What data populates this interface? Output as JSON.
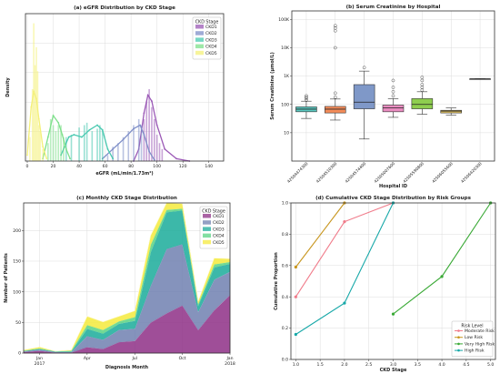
{
  "chart_data": [
    {
      "panel": "a",
      "type": "area",
      "title": "(a) eGFR Distribution by CKD Stage",
      "xlabel": "eGFR (mL/min/1.73m²)",
      "ylabel": "Density",
      "xlim": [
        0,
        150
      ],
      "x_ticks": [
        "0",
        "20",
        "40",
        "60",
        "80",
        "100",
        "120",
        "140"
      ],
      "y_ticks": [],
      "legend_title": "CKD Stage",
      "legend_position": "top-right",
      "series": [
        {
          "name": "CKD1",
          "color": "#9b59b6",
          "histogram": [
            [
              90,
              0.35
            ],
            [
              92,
              0.5
            ],
            [
              94,
              0.6
            ],
            [
              96,
              0.45
            ],
            [
              98,
              0.35
            ],
            [
              100,
              0.22
            ],
            [
              102,
              0.15
            ],
            [
              104,
              0.1
            ]
          ],
          "kde": [
            [
              82,
              0.0
            ],
            [
              86,
              0.1
            ],
            [
              90,
              0.4
            ],
            [
              93,
              0.55
            ],
            [
              96,
              0.5
            ],
            [
              100,
              0.3
            ],
            [
              106,
              0.1
            ],
            [
              115,
              0.02
            ],
            [
              125,
              0.0
            ]
          ]
        },
        {
          "name": "CKD2",
          "color": "#7f8fc8",
          "histogram": [
            [
              62,
              0.05
            ],
            [
              66,
              0.12
            ],
            [
              70,
              0.15
            ],
            [
              74,
              0.2
            ],
            [
              78,
              0.25
            ],
            [
              82,
              0.3
            ],
            [
              86,
              0.35
            ],
            [
              88,
              0.3
            ]
          ],
          "kde": [
            [
              58,
              0.02
            ],
            [
              66,
              0.1
            ],
            [
              74,
              0.18
            ],
            [
              82,
              0.27
            ],
            [
              87,
              0.3
            ],
            [
              90,
              0.22
            ],
            [
              94,
              0.08
            ],
            [
              98,
              0.01
            ]
          ]
        },
        {
          "name": "CKD3",
          "color": "#48c9b0",
          "histogram": [
            [
              30,
              0.2
            ],
            [
              34,
              0.22
            ],
            [
              40,
              0.28
            ],
            [
              44,
              0.3
            ],
            [
              46,
              0.32
            ],
            [
              50,
              0.25
            ],
            [
              54,
              0.27
            ],
            [
              56,
              0.3
            ],
            [
              58,
              0.26
            ]
          ],
          "kde": [
            [
              26,
              0.05
            ],
            [
              32,
              0.2
            ],
            [
              36,
              0.22
            ],
            [
              42,
              0.2
            ],
            [
              48,
              0.26
            ],
            [
              54,
              0.3
            ],
            [
              58,
              0.26
            ],
            [
              62,
              0.1
            ],
            [
              66,
              0.02
            ]
          ]
        },
        {
          "name": "CKD4",
          "color": "#7ee08b",
          "histogram": [
            [
              16,
              0.15
            ],
            [
              18,
              0.35
            ],
            [
              20,
              0.3
            ],
            [
              22,
              0.25
            ],
            [
              24,
              0.3
            ],
            [
              26,
              0.3
            ],
            [
              28,
              0.2
            ]
          ],
          "kde": [
            [
              12,
              0.02
            ],
            [
              16,
              0.2
            ],
            [
              20,
              0.38
            ],
            [
              24,
              0.32
            ],
            [
              27,
              0.22
            ],
            [
              30,
              0.1
            ],
            [
              33,
              0.02
            ]
          ]
        },
        {
          "name": "CKD5",
          "color": "#f4f07a",
          "histogram": [
            [
              2,
              0.2
            ],
            [
              4,
              0.6
            ],
            [
              5,
              1.15
            ],
            [
              6,
              0.8
            ],
            [
              7,
              0.95
            ],
            [
              8,
              0.75
            ],
            [
              9,
              0.3
            ],
            [
              10,
              0.25
            ],
            [
              12,
              0.1
            ]
          ],
          "kde": [
            [
              0,
              0.05
            ],
            [
              3,
              0.45
            ],
            [
              5,
              0.58
            ],
            [
              7,
              0.52
            ],
            [
              9,
              0.35
            ],
            [
              12,
              0.12
            ],
            [
              15,
              0.02
            ]
          ]
        }
      ]
    },
    {
      "panel": "b",
      "type": "box",
      "title": "(b) Serum Creatinine by Hospital",
      "xlabel": "Hospital ID",
      "ylabel": "Serum Creatinine (µmol/L)",
      "yscale": "log",
      "ylim": [
        1,
        200000
      ],
      "y_ticks": [
        "10",
        "100",
        "1K",
        "10K",
        "100K"
      ],
      "boxes": [
        {
          "label": "42504474300",
          "color": "#5bc8c0",
          "whisker_low": 32,
          "q1": 55,
          "median": 68,
          "q3": 82,
          "whisker_high": 130,
          "outliers": [
            140,
            160,
            180,
            200
          ]
        },
        {
          "name": "",
          "label": "42504510300",
          "color": "#f48c5a",
          "whisker_low": 28,
          "q1": 50,
          "median": 68,
          "q3": 85,
          "whisker_high": 155,
          "outliers": [
            180,
            250,
            10000,
            40000,
            50000,
            60000
          ]
        },
        {
          "label": "42504574400",
          "color": "#7f98c8",
          "whisker_low": 6,
          "q1": 70,
          "median": 120,
          "q3": 500,
          "whisker_high": 1500,
          "outliers": [
            2000
          ]
        },
        {
          "label": "42505007600",
          "color": "#e98cc0",
          "whisker_low": 35,
          "q1": 55,
          "median": 75,
          "q3": 95,
          "whisker_high": 160,
          "outliers": [
            200,
            280,
            400,
            700
          ]
        },
        {
          "label": "42505590800",
          "color": "#8ece4f",
          "whisker_low": 45,
          "q1": 70,
          "median": 100,
          "q3": 160,
          "whisker_high": 280,
          "outliers": [
            320,
            400,
            500,
            700,
            900
          ]
        },
        {
          "label": "42506055600",
          "color": "#e0c060",
          "whisker_low": 42,
          "q1": 50,
          "median": 58,
          "q3": 62,
          "whisker_high": 75,
          "outliers": []
        },
        {
          "label": "42506420300",
          "color": "#b8b8b8",
          "whisker_low": 800,
          "q1": 800,
          "median": 800,
          "q3": 800,
          "whisker_high": 800,
          "outliers": []
        }
      ]
    },
    {
      "panel": "c",
      "type": "area",
      "stacked": true,
      "title": "(c) Monthly CKD Stage Distribution",
      "xlabel": "Diagnosis Month",
      "ylabel": "Number of Patients",
      "ylim": [
        0,
        245
      ],
      "y_ticks": [
        "0",
        "50",
        "100",
        "150",
        "200"
      ],
      "x_ticks": [
        {
          "label": "Jan",
          "sub": "2017",
          "month": 1
        },
        {
          "label": "Apr",
          "sub": "",
          "month": 4
        },
        {
          "label": "Jul",
          "sub": "",
          "month": 7
        },
        {
          "label": "Oct",
          "sub": "",
          "month": 10
        },
        {
          "label": "Jan",
          "sub": "2018",
          "month": 13
        }
      ],
      "months": [
        0,
        1,
        2,
        3,
        4,
        5,
        6,
        7,
        8,
        9,
        10,
        11,
        12,
        13
      ],
      "legend_title": "CKD Stage",
      "legend_position": "top-right",
      "series": [
        {
          "name": "CKD1",
          "color": "#8e2f86",
          "values": [
            2,
            4,
            1,
            1,
            10,
            7,
            18,
            20,
            50,
            65,
            78,
            38,
            70,
            95
          ]
        },
        {
          "name": "CKD2",
          "color": "#7080b0",
          "values": [
            1,
            2,
            1,
            1,
            18,
            15,
            20,
            20,
            60,
            105,
            100,
            30,
            50,
            38
          ]
        },
        {
          "name": "CKD3",
          "color": "#1aab9a",
          "values": [
            1,
            1,
            1,
            1,
            12,
            10,
            10,
            13,
            55,
            60,
            55,
            10,
            20,
            13
          ]
        },
        {
          "name": "CKD4",
          "color": "#5ad483",
          "values": [
            0,
            1,
            0,
            1,
            6,
            6,
            4,
            6,
            12,
            4,
            3,
            3,
            5,
            3
          ]
        },
        {
          "name": "CKD5",
          "color": "#f5ea3c",
          "values": [
            1,
            2,
            0,
            1,
            14,
            13,
            8,
            10,
            15,
            11,
            8,
            4,
            10,
            5
          ]
        }
      ]
    },
    {
      "panel": "d",
      "type": "line",
      "title": "(d) Cumulative CKD Stage Distribution by Risk Groups",
      "xlabel": "CKD Stage",
      "ylabel": "Cumulative Proportion",
      "xlim": [
        0.9,
        5.1
      ],
      "ylim": [
        0,
        1.0
      ],
      "x_ticks": [
        "1.0",
        "1.5",
        "2.0",
        "2.5",
        "3.0",
        "3.5",
        "4.0",
        "4.5",
        "5.0"
      ],
      "y_ticks": [
        "0.0",
        "0.2",
        "0.4",
        "0.6",
        "0.8",
        "1.0"
      ],
      "legend_title": "Risk Level",
      "legend_position": "bottom-right",
      "series": [
        {
          "name": "Moderate Risk",
          "color": "#f07b8a",
          "x": [
            1,
            2,
            3
          ],
          "y": [
            0.4,
            0.88,
            1.0
          ]
        },
        {
          "name": "Low Risk",
          "color": "#c8961e",
          "x": [
            1,
            2
          ],
          "y": [
            0.59,
            1.0
          ]
        },
        {
          "name": "Very High Risk",
          "color": "#39a935",
          "x": [
            3,
            4,
            5
          ],
          "y": [
            0.29,
            0.53,
            1.0
          ]
        },
        {
          "name": "High Risk",
          "color": "#17a8a8",
          "x": [
            1,
            2,
            3
          ],
          "y": [
            0.16,
            0.36,
            1.0
          ]
        }
      ]
    }
  ]
}
